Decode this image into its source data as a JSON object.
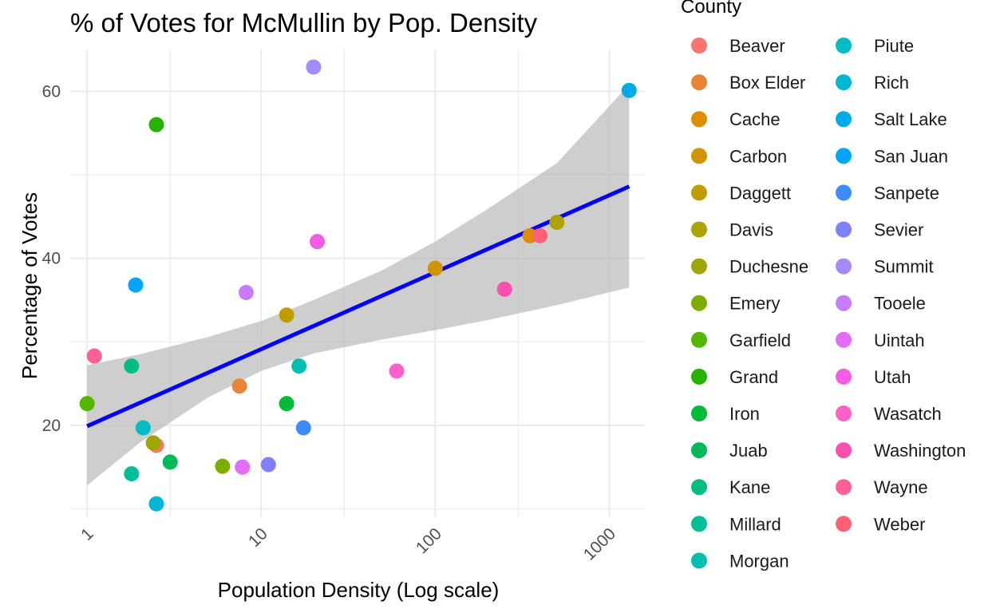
{
  "chart_data": {
    "type": "scatter",
    "title": "% of Votes for McMullin by Pop. Density",
    "xlabel": "Population Density (Log scale)",
    "ylabel": "Percentage of Votes",
    "xscale": "log10",
    "xlim": [
      0.8,
      1600
    ],
    "ylim": [
      9,
      65
    ],
    "xticks": [
      1,
      10,
      100,
      1000
    ],
    "xtick_labels": [
      "1",
      "10",
      "100",
      "1000"
    ],
    "xtick_rotation": -45,
    "yticks": [
      20,
      40,
      60
    ],
    "ytick_labels": [
      "20",
      "40",
      "60"
    ],
    "grid": true,
    "legend": {
      "title": "County",
      "placement": "right",
      "columns": 2
    },
    "series": [
      {
        "name": "Beaver",
        "color": "#F8766D",
        "x": 2.5,
        "y": 17.6
      },
      {
        "name": "Box Elder",
        "color": "#EB8335",
        "x": 7.5,
        "y": 24.7
      },
      {
        "name": "Cache",
        "color": "#DE8C00",
        "x": 350,
        "y": 42.7
      },
      {
        "name": "Carbon",
        "color": "#CF9400",
        "x": 100,
        "y": 38.8
      },
      {
        "name": "Daggett",
        "color": "#BF9D00",
        "x": 14,
        "y": 33.2
      },
      {
        "name": "Davis",
        "color": "#AEA200",
        "x": 500,
        "y": 44.3
      },
      {
        "name": "Duchesne",
        "color": "#9DA700",
        "x": 2.4,
        "y": 17.9
      },
      {
        "name": "Emery",
        "color": "#7CAE00",
        "x": 6,
        "y": 15.1
      },
      {
        "name": "Garfield",
        "color": "#55B700",
        "x": 1,
        "y": 22.6
      },
      {
        "name": "Grand",
        "color": "#26B200",
        "x": 2.5,
        "y": 56.0
      },
      {
        "name": "Iron",
        "color": "#00BA38",
        "x": 14,
        "y": 22.6
      },
      {
        "name": "Juab",
        "color": "#00BA5A",
        "x": 3,
        "y": 15.6
      },
      {
        "name": "Kane",
        "color": "#00BE82",
        "x": 1.8,
        "y": 27.1
      },
      {
        "name": "Millard",
        "color": "#00BE98",
        "x": 1.8,
        "y": 14.2
      },
      {
        "name": "Morgan",
        "color": "#00BFAE",
        "x": 16.5,
        "y": 27.1
      },
      {
        "name": "Piute",
        "color": "#00BCC5",
        "x": 2.1,
        "y": 19.7
      },
      {
        "name": "Rich",
        "color": "#00B6D7",
        "x": 2.5,
        "y": 10.6
      },
      {
        "name": "Salt Lake",
        "color": "#00ABEA",
        "x": 1300,
        "y": 60.1
      },
      {
        "name": "San Juan",
        "color": "#00A5FF",
        "x": 1.9,
        "y": 36.8
      },
      {
        "name": "Sanpete",
        "color": "#3D8CFF",
        "x": 17.5,
        "y": 19.7
      },
      {
        "name": "Sevier",
        "color": "#7F80FF",
        "x": 11,
        "y": 15.3
      },
      {
        "name": "Summit",
        "color": "#A58AFF",
        "x": 20,
        "y": 62.9
      },
      {
        "name": "Tooele",
        "color": "#C77CFF",
        "x": 8.2,
        "y": 35.9
      },
      {
        "name": "Uintah",
        "color": "#E36EF6",
        "x": 7.8,
        "y": 15.0
      },
      {
        "name": "Utah",
        "color": "#F35CE3",
        "x": 21,
        "y": 42.0
      },
      {
        "name": "Wasatch",
        "color": "#FF61C9",
        "x": 60,
        "y": 26.5
      },
      {
        "name": "Washington",
        "color": "#FC4FAE",
        "x": 250,
        "y": 36.3
      },
      {
        "name": "Wayne",
        "color": "#FF6196",
        "x": 1.1,
        "y": 28.3
      },
      {
        "name": "Weber",
        "color": "#FF6177",
        "x": 400,
        "y": 42.7
      }
    ],
    "trend_line": {
      "method": "linear regression",
      "color": "#0000FF",
      "x": [
        1,
        1300
      ],
      "y": [
        19.9,
        48.6
      ]
    },
    "confidence_band": {
      "color": "#BEBEBE",
      "x": [
        1,
        2,
        5,
        10,
        20,
        50,
        100,
        200,
        500,
        1300
      ],
      "lower": [
        12.8,
        17.9,
        23.4,
        26.5,
        28.6,
        30.3,
        31.4,
        32.6,
        34.4,
        36.5
      ],
      "upper": [
        27.2,
        28.5,
        30.6,
        32.5,
        35.0,
        38.6,
        42.0,
        45.9,
        51.4,
        60.8
      ]
    }
  }
}
